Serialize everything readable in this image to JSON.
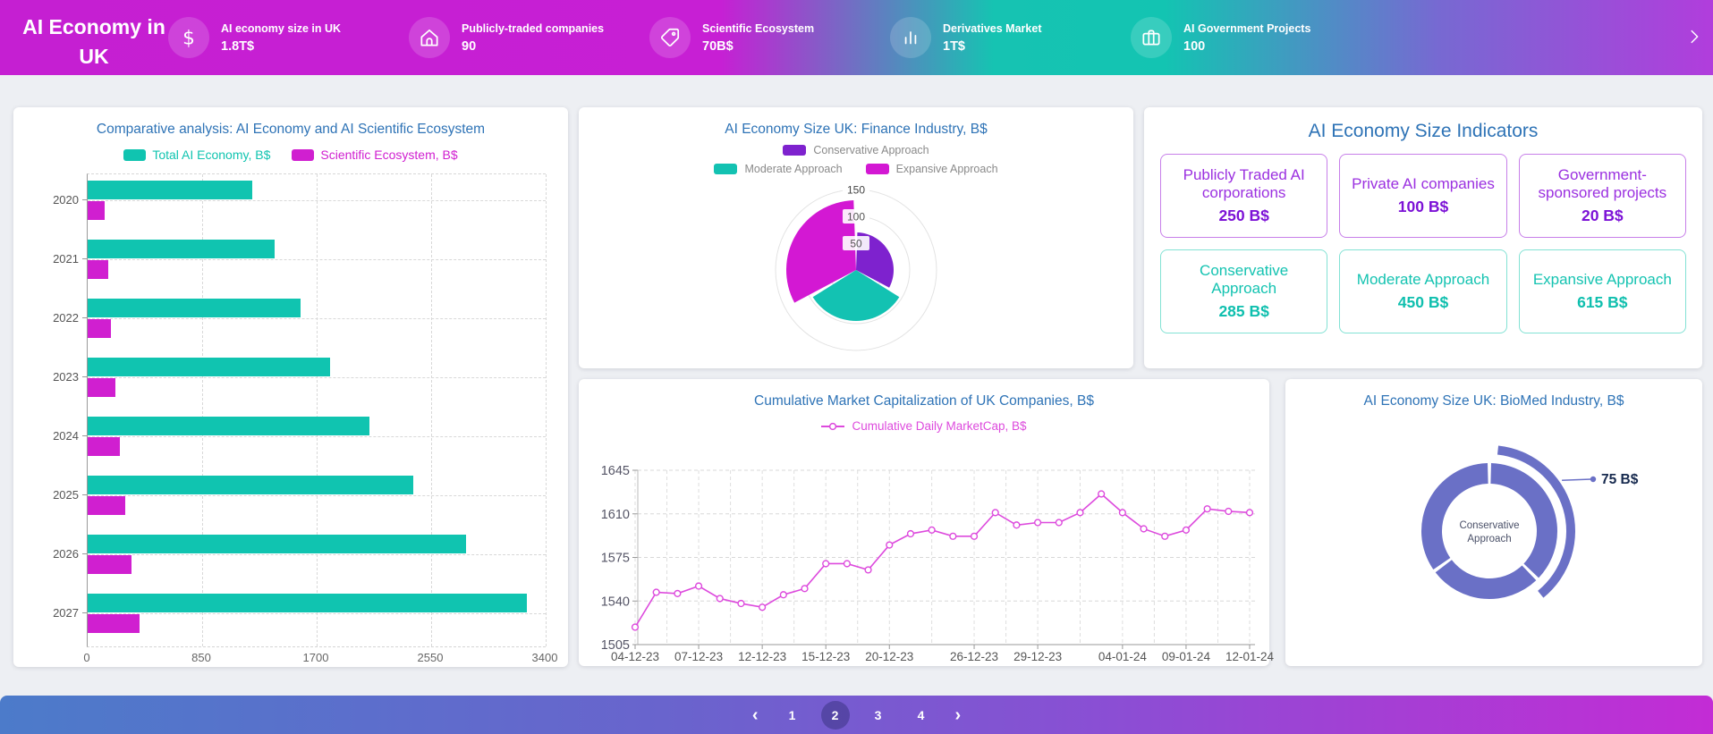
{
  "header": {
    "title": "AI Economy in UK",
    "kpis": [
      {
        "icon": "dollar-icon",
        "label": "AI economy size in UK",
        "value": "1.8T$"
      },
      {
        "icon": "home-icon",
        "label": "Publicly-traded companies",
        "value": "90"
      },
      {
        "icon": "tag-icon",
        "label": "Scientific Ecosystem",
        "value": "70B$"
      },
      {
        "icon": "bar-chart-icon",
        "label": "Derivatives Market",
        "value": "1T$"
      },
      {
        "icon": "briefcase-icon",
        "label": "AI Government Projects",
        "value": "100"
      }
    ]
  },
  "chart_data": [
    {
      "id": "comparative",
      "type": "bar",
      "orientation": "horizontal",
      "title": "Comparative analysis: AI Economy and AI Scientific Ecosystem",
      "categories": [
        "2020",
        "2021",
        "2022",
        "2023",
        "2024",
        "2025",
        "2026",
        "2027"
      ],
      "series": [
        {
          "name": "Total AI Economy, B$",
          "color": "#10c4b0",
          "values": [
            1220,
            1390,
            1580,
            1800,
            2090,
            2420,
            2810,
            3260
          ]
        },
        {
          "name": "Scientific Ecosystem, B$",
          "color": "#d01fd0",
          "values": [
            125,
            150,
            175,
            205,
            240,
            280,
            325,
            385
          ]
        }
      ],
      "xlim": [
        0,
        3400
      ],
      "xticks": [
        0,
        850,
        1700,
        2550,
        3400
      ],
      "grid": true,
      "legend_position": "top"
    },
    {
      "id": "finance",
      "type": "pie",
      "variant": "polar-rose",
      "title": "AI Economy Size UK: Finance Industry, B$",
      "slices": [
        {
          "name": "Conservative Approach",
          "value": 70,
          "color": "#7e22ce"
        },
        {
          "name": "Moderate Approach",
          "value": 95,
          "color": "#13c2b2"
        },
        {
          "name": "Expansive Approach",
          "value": 130,
          "color": "#d318d3"
        }
      ],
      "radial_ticks": [
        50,
        100,
        150
      ],
      "rmax": 150,
      "legend_position": "top"
    },
    {
      "id": "marketcap",
      "type": "line",
      "title": "Cumulative Market Capitalization of UK Companies, B$",
      "series_name": "Cumulative Daily MarketCap, B$",
      "color": "#dd4add",
      "x": [
        "04-12-23",
        "05-12-23",
        "06-12-23",
        "07-12-23",
        "08-12-23",
        "11-12-23",
        "12-12-23",
        "13-12-23",
        "14-12-23",
        "15-12-23",
        "18-12-23",
        "19-12-23",
        "20-12-23",
        "21-12-23",
        "22-12-23",
        "25-12-23",
        "26-12-23",
        "27-12-23",
        "28-12-23",
        "29-12-23",
        "01-01-24",
        "02-01-24",
        "03-01-24",
        "04-01-24",
        "05-01-24",
        "08-01-24",
        "09-01-24",
        "10-01-24",
        "11-01-24",
        "12-01-24"
      ],
      "values": [
        1519,
        1547,
        1546,
        1552,
        1542,
        1538,
        1535,
        1545,
        1550,
        1570,
        1570,
        1565,
        1585,
        1594,
        1597,
        1592,
        1592,
        1611,
        1601,
        1603,
        1603,
        1611,
        1626,
        1611,
        1598,
        1592,
        1597,
        1614,
        1612,
        1611
      ],
      "x_tick_labels": [
        "04-12-23",
        "07-12-23",
        "12-12-23",
        "15-12-23",
        "20-12-23",
        "26-12-23",
        "29-12-23",
        "04-01-24",
        "09-01-24",
        "12-01-24"
      ],
      "ylim": [
        1505,
        1645
      ],
      "yticks": [
        1505,
        1540,
        1575,
        1610,
        1645
      ],
      "grid": true
    },
    {
      "id": "biomed",
      "type": "pie",
      "variant": "donut",
      "title": "AI Economy Size UK: BioMed Industry, B$",
      "color": "#6a70c6",
      "slices": [
        {
          "name": "Conservative Approach",
          "value": 75
        },
        {
          "name": "",
          "value": 55
        },
        {
          "name": "",
          "value": 70
        }
      ],
      "highlight_slice": 0,
      "callout_label": "75 B$",
      "callout_color": "#16294e",
      "center_label": "Conservative Approach"
    }
  ],
  "indicators": {
    "title": "AI Economy Size Indicators",
    "cards": [
      {
        "label": "Publicly Traded AI corporations",
        "value": "250 B$",
        "theme": "purple"
      },
      {
        "label": "Private AI companies",
        "value": "100 B$",
        "theme": "purple"
      },
      {
        "label": "Government-sponsored projects",
        "value": "20 B$",
        "theme": "purple"
      },
      {
        "label": "Conservative Approach",
        "value": "285 B$",
        "theme": "teal"
      },
      {
        "label": "Moderate Approach",
        "value": "450 B$",
        "theme": "teal"
      },
      {
        "label": "Expansive Approach",
        "value": "615 B$",
        "theme": "teal"
      }
    ]
  },
  "pagination": {
    "pages": [
      "1",
      "2",
      "3",
      "4"
    ],
    "active_page": "2",
    "prev_icon": "chevron-left-icon",
    "next_icon": "chevron-right-icon"
  }
}
